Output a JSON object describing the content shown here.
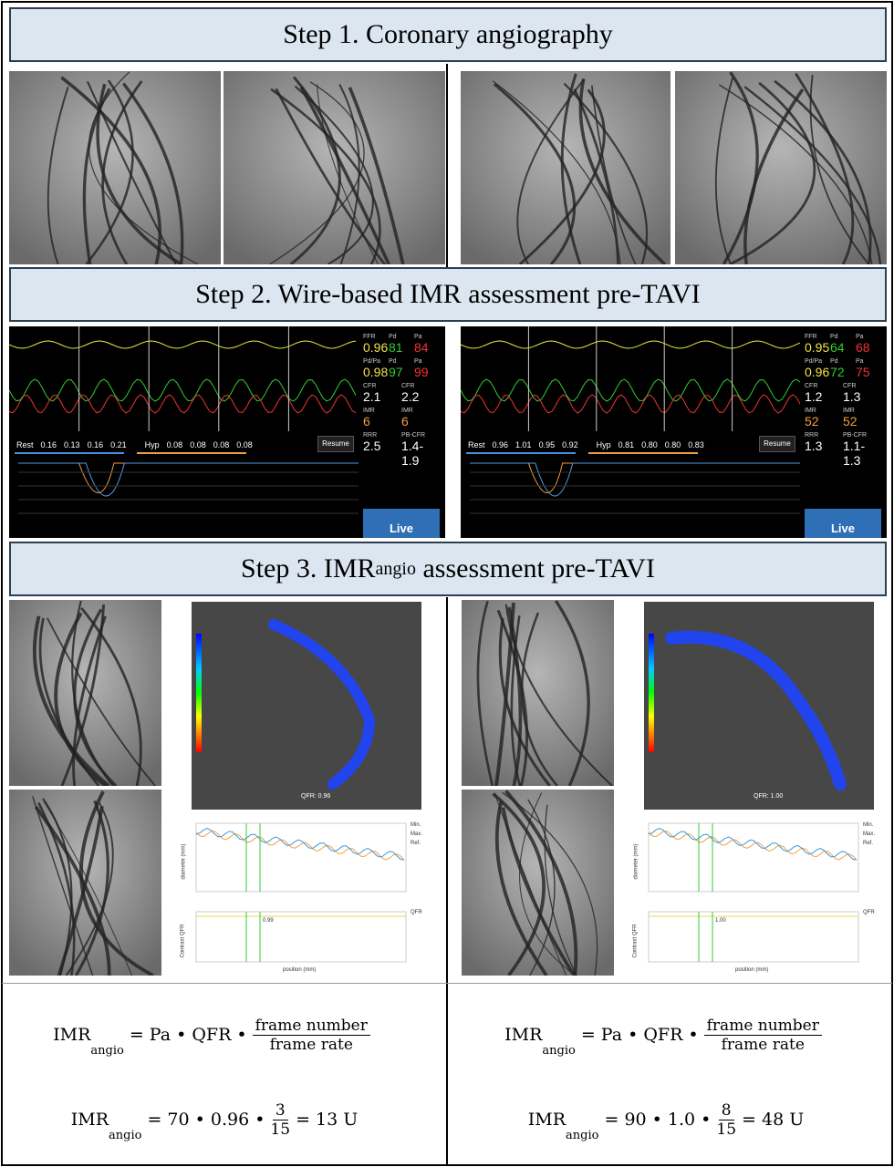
{
  "steps": [
    {
      "title": "Step 1. Coronary angiography"
    },
    {
      "title": "Step 2. Wire-based IMR assessment pre-TAVI"
    },
    {
      "title_main": "Step 3. IMR",
      "title_sub": "angio",
      "title_rest": " assessment pre-TAVI"
    }
  ],
  "monitors": [
    {
      "rows": [
        [
          {
            "label": "FFR",
            "value": "0.96"
          },
          {
            "label": "Pd",
            "value": "81"
          },
          {
            "label": "Pa",
            "value": "84"
          }
        ],
        [
          {
            "label": "Pd/Pa",
            "value": "0.98"
          },
          {
            "label": "Pd",
            "value": "97"
          },
          {
            "label": "Pa",
            "value": "99"
          }
        ],
        [
          {
            "label": "CFR",
            "value": "2.1"
          },
          {
            "label": "CFR",
            "value": "2.2"
          }
        ],
        [
          {
            "label": "IMR",
            "value": "6"
          },
          {
            "label": "IMR",
            "value": "6"
          }
        ],
        [
          {
            "label": "RRR",
            "value": "2.5"
          },
          {
            "label": "PB-CFR",
            "value": "1.4-1.9"
          }
        ]
      ],
      "rest_label": "Rest",
      "rest": [
        "0.16",
        "0.13",
        "0.16",
        "0.21"
      ],
      "hyp_label": "Hyp",
      "hyp": [
        "0.08",
        "0.08",
        "0.08",
        "0.08"
      ],
      "button": "Resume",
      "live": "Live"
    },
    {
      "rows": [
        [
          {
            "label": "FFR",
            "value": "0.95"
          },
          {
            "label": "Pd",
            "value": "64"
          },
          {
            "label": "Pa",
            "value": "68"
          }
        ],
        [
          {
            "label": "Pd/Pa",
            "value": "0.96"
          },
          {
            "label": "Pd",
            "value": "72"
          },
          {
            "label": "Pa",
            "value": "75"
          }
        ],
        [
          {
            "label": "CFR",
            "value": "1.2"
          },
          {
            "label": "CFR",
            "value": "1.3"
          }
        ],
        [
          {
            "label": "IMR",
            "value": "52"
          },
          {
            "label": "IMR",
            "value": "52"
          }
        ],
        [
          {
            "label": "RRR",
            "value": "1.3"
          },
          {
            "label": "PB-CFR",
            "value": "1.1-1.3"
          }
        ]
      ],
      "rest_label": "Rest",
      "rest": [
        "0.96",
        "1.01",
        "0.95",
        "0.92"
      ],
      "hyp_label": "Hyp",
      "hyp": [
        "0.81",
        "0.80",
        "0.80",
        "0.83"
      ],
      "button": "Resume",
      "live": "Live"
    }
  ],
  "qfr_panels": [
    {
      "qfr": "QFR: 0.96",
      "diameter_axis": "diameter (mm)",
      "qfr_axis": "Contrast QFR",
      "position_axis": "position (mm)",
      "legend": [
        "Min.",
        "Max.",
        "Ref."
      ],
      "qfr_legend": "QFR",
      "qfr_marker": "0.99"
    },
    {
      "qfr": "QFR: 1.00",
      "diameter_axis": "diameter (mm)",
      "qfr_axis": "Contrast QFR",
      "position_axis": "position (mm)",
      "legend": [
        "Min.",
        "Max.",
        "Ref."
      ],
      "qfr_legend": "QFR",
      "qfr_marker": "1.00"
    }
  ],
  "formulas": [
    {
      "lhs": "IMR",
      "sub": "angio",
      "mid": "= Pa • QFR •",
      "num": "frame number",
      "den": "frame rate",
      "rhs": ""
    },
    {
      "lhs": "IMR",
      "sub": "angio",
      "mid": "= 70 • 0.96 •",
      "num": "3",
      "den": "15",
      "rhs": "= 13 U"
    },
    {
      "lhs": "IMR",
      "sub": "angio",
      "mid": "= Pa • QFR •",
      "num": "frame number",
      "den": "frame rate",
      "rhs": ""
    },
    {
      "lhs": "IMR",
      "sub": "angio",
      "mid": "= 90 • 1.0 •",
      "num": "8",
      "den": "15",
      "rhs": "= 48 U"
    }
  ]
}
